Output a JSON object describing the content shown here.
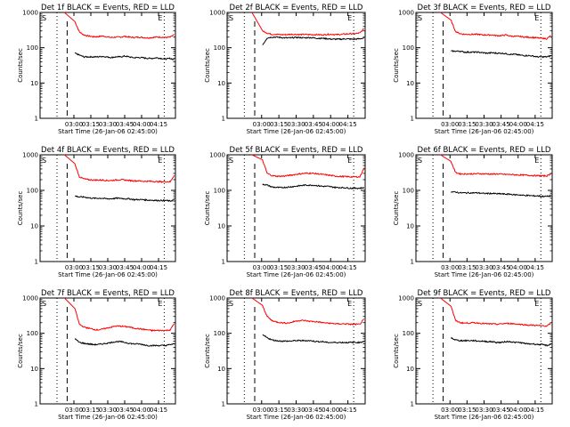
{
  "chart_data": [
    {
      "type": "line",
      "title": "Det 1f BLACK = Events, RED = LLD",
      "xlabel": "Start Time (26-Jan-06 02:45:00)",
      "ylabel": "Counts/sec",
      "yscale": "log",
      "ylim": [
        1,
        1000
      ],
      "x_ticks": [
        "03:00",
        "03:15",
        "03:30",
        "03:45",
        "04:00",
        "04:15"
      ],
      "y_ticks": [
        "1",
        "10",
        "100",
        "1000"
      ],
      "markers": [
        "S",
        "E"
      ],
      "shape": "a",
      "series": [
        {
          "color": "#ff0000",
          "values": [
            null,
            null,
            550,
            280,
            230,
            215,
            205,
            205,
            215,
            205,
            195,
            200,
            200,
            210,
            200,
            195,
            200,
            195,
            190,
            195,
            200,
            200,
            195,
            200,
            240
          ]
        },
        {
          "color": "#000000",
          "values": [
            null,
            null,
            70,
            62,
            55,
            55,
            55,
            55,
            57,
            55,
            53,
            55,
            55,
            58,
            55,
            52,
            53,
            52,
            50,
            50,
            52,
            50,
            48,
            50,
            45
          ]
        }
      ]
    },
    {
      "type": "line",
      "title": "Det 2f BLACK = Events, RED = LLD",
      "xlabel": "Start Time (26-Jan-06 02:45:00)",
      "ylabel": "Counts/sec",
      "yscale": "log",
      "ylim": [
        1,
        1000
      ],
      "x_ticks": [
        "03:00",
        "03:15",
        "03:30",
        "03:45",
        "04:00",
        "04:15"
      ],
      "y_ticks": [
        "1",
        "10",
        "100",
        "1000"
      ],
      "markers": [
        "S",
        "E"
      ],
      "shape": "b",
      "series": [
        {
          "color": "#ff0000",
          "values": [
            null,
            null,
            300,
            260,
            240,
            240,
            235,
            235,
            240,
            240,
            235,
            240,
            235,
            235,
            235,
            230,
            240,
            240,
            235,
            240,
            245,
            250,
            250,
            260,
            360
          ]
        },
        {
          "color": "#000000",
          "values": [
            null,
            null,
            120,
            190,
            200,
            200,
            195,
            190,
            190,
            195,
            195,
            190,
            195,
            190,
            185,
            185,
            180,
            175,
            175,
            175,
            180,
            175,
            175,
            180,
            190
          ]
        }
      ]
    },
    {
      "type": "line",
      "title": "Det 3f BLACK = Events, RED = LLD",
      "xlabel": "Start Time (26-Jan-06 02:45:00)",
      "ylabel": "Counts/sec",
      "yscale": "log",
      "ylim": [
        1,
        1000
      ],
      "x_ticks": [
        "03:00",
        "03:15",
        "03:30",
        "03:45",
        "04:00",
        "04:15"
      ],
      "y_ticks": [
        "1",
        "10",
        "100",
        "1000"
      ],
      "markers": [
        "S",
        "E"
      ],
      "shape": "a",
      "series": [
        {
          "color": "#ff0000",
          "values": [
            null,
            null,
            600,
            290,
            250,
            240,
            240,
            240,
            240,
            230,
            230,
            230,
            220,
            220,
            230,
            215,
            210,
            210,
            200,
            200,
            195,
            190,
            185,
            180,
            230
          ]
        },
        {
          "color": "#000000",
          "values": [
            null,
            null,
            80,
            80,
            80,
            75,
            75,
            75,
            75,
            72,
            70,
            72,
            70,
            70,
            68,
            65,
            65,
            62,
            60,
            60,
            58,
            55,
            55,
            55,
            60
          ]
        }
      ]
    },
    {
      "type": "line",
      "title": "Det 4f BLACK = Events, RED = LLD",
      "xlabel": "Start Time (26-Jan-06 02:45:00)",
      "ylabel": "Counts/sec",
      "yscale": "log",
      "ylim": [
        1,
        1000
      ],
      "x_ticks": [
        "03:00",
        "03:15",
        "03:30",
        "03:45",
        "04:00",
        "04:15"
      ],
      "y_ticks": [
        "1",
        "10",
        "100",
        "1000"
      ],
      "markers": [
        "S",
        "E"
      ],
      "shape": "a",
      "series": [
        {
          "color": "#ff0000",
          "values": [
            null,
            null,
            550,
            240,
            210,
            200,
            195,
            195,
            195,
            190,
            190,
            195,
            200,
            195,
            190,
            185,
            185,
            180,
            180,
            180,
            175,
            175,
            175,
            175,
            280
          ]
        },
        {
          "color": "#000000",
          "values": [
            null,
            null,
            70,
            65,
            65,
            62,
            60,
            60,
            60,
            58,
            58,
            60,
            60,
            58,
            58,
            55,
            55,
            55,
            53,
            53,
            52,
            52,
            52,
            50,
            55
          ]
        }
      ]
    },
    {
      "type": "line",
      "title": "Det 5f BLACK = Events, RED = LLD",
      "xlabel": "Start Time (26-Jan-06 02:45:00)",
      "ylabel": "Counts/sec",
      "yscale": "log",
      "ylim": [
        1,
        1000
      ],
      "x_ticks": [
        "03:00",
        "03:15",
        "03:30",
        "03:45",
        "04:00",
        "04:15"
      ],
      "y_ticks": [
        "1",
        "10",
        "100",
        "1000"
      ],
      "markers": [
        "S",
        "E"
      ],
      "shape": "a",
      "series": [
        {
          "color": "#ff0000",
          "values": [
            null,
            null,
            700,
            300,
            260,
            250,
            250,
            255,
            265,
            280,
            290,
            300,
            305,
            300,
            290,
            280,
            270,
            260,
            250,
            245,
            245,
            240,
            240,
            240,
            450
          ]
        },
        {
          "color": "#000000",
          "values": [
            null,
            null,
            150,
            140,
            125,
            120,
            120,
            122,
            125,
            130,
            135,
            140,
            140,
            140,
            135,
            130,
            130,
            125,
            120,
            120,
            118,
            115,
            115,
            115,
            120
          ]
        }
      ]
    },
    {
      "type": "line",
      "title": "Det 6f BLACK = Events, RED = LLD",
      "xlabel": "Start Time (26-Jan-06 02:45:00)",
      "ylabel": "Counts/sec",
      "yscale": "log",
      "ylim": [
        1,
        1000
      ],
      "x_ticks": [
        "03:00",
        "03:15",
        "03:30",
        "03:45",
        "04:00",
        "04:15"
      ],
      "y_ticks": [
        "1",
        "10",
        "100",
        "1000"
      ],
      "markers": [
        "S",
        "E"
      ],
      "shape": "a",
      "series": [
        {
          "color": "#ff0000",
          "values": [
            null,
            null,
            650,
            320,
            290,
            290,
            290,
            290,
            295,
            290,
            290,
            285,
            290,
            285,
            280,
            280,
            275,
            270,
            270,
            265,
            260,
            260,
            255,
            255,
            300
          ]
        },
        {
          "color": "#000000",
          "values": [
            null,
            null,
            90,
            90,
            85,
            85,
            85,
            85,
            85,
            82,
            82,
            82,
            80,
            80,
            78,
            78,
            75,
            75,
            72,
            72,
            70,
            70,
            68,
            68,
            70
          ]
        }
      ]
    },
    {
      "type": "line",
      "title": "Det 7f BLACK = Events, RED = LLD",
      "xlabel": "Start Time (26-Jan-06 02:45:00)",
      "ylabel": "Counts/sec",
      "yscale": "log",
      "ylim": [
        1,
        1000
      ],
      "x_ticks": [
        "03:00",
        "03:15",
        "03:30",
        "03:45",
        "04:00",
        "04:15"
      ],
      "y_ticks": [
        "1",
        "10",
        "100",
        "1000"
      ],
      "markers": [
        "S",
        "E"
      ],
      "shape": "a",
      "series": [
        {
          "color": "#ff0000",
          "values": [
            null,
            null,
            500,
            180,
            150,
            140,
            130,
            125,
            130,
            140,
            150,
            160,
            160,
            155,
            150,
            140,
            135,
            130,
            125,
            120,
            120,
            120,
            120,
            125,
            200
          ]
        },
        {
          "color": "#000000",
          "values": [
            null,
            null,
            70,
            55,
            52,
            50,
            48,
            48,
            50,
            52,
            55,
            58,
            58,
            55,
            52,
            50,
            50,
            48,
            45,
            45,
            45,
            45,
            45,
            48,
            50
          ]
        }
      ]
    },
    {
      "type": "line",
      "title": "Det 8f BLACK = Events, RED = LLD",
      "xlabel": "Start Time (26-Jan-06 02:45:00)",
      "ylabel": "Counts/sec",
      "yscale": "log",
      "ylim": [
        1,
        1000
      ],
      "x_ticks": [
        "03:00",
        "03:15",
        "03:30",
        "03:45",
        "04:00",
        "04:15"
      ],
      "y_ticks": [
        "1",
        "10",
        "100",
        "1000"
      ],
      "markers": [
        "S",
        "E"
      ],
      "shape": "a",
      "series": [
        {
          "color": "#ff0000",
          "values": [
            null,
            null,
            600,
            300,
            230,
            210,
            200,
            195,
            200,
            220,
            230,
            230,
            220,
            215,
            210,
            200,
            195,
            190,
            185,
            185,
            185,
            180,
            180,
            180,
            260
          ]
        },
        {
          "color": "#000000",
          "values": [
            null,
            null,
            90,
            75,
            65,
            62,
            60,
            60,
            60,
            62,
            62,
            62,
            62,
            60,
            58,
            58,
            55,
            55,
            55,
            55,
            55,
            55,
            55,
            55,
            60
          ]
        }
      ]
    },
    {
      "type": "line",
      "title": "Det 9f BLACK = Events, RED = LLD",
      "xlabel": "Start Time (26-Jan-06 02:45:00)",
      "ylabel": "Counts/sec",
      "yscale": "log",
      "ylim": [
        1,
        1000
      ],
      "x_ticks": [
        "03:00",
        "03:15",
        "03:30",
        "03:45",
        "04:00",
        "04:15"
      ],
      "y_ticks": [
        "1",
        "10",
        "100",
        "1000"
      ],
      "markers": [
        "S",
        "E"
      ],
      "shape": "a",
      "series": [
        {
          "color": "#ff0000",
          "values": [
            null,
            null,
            600,
            230,
            200,
            195,
            195,
            200,
            195,
            190,
            185,
            185,
            180,
            185,
            190,
            190,
            185,
            180,
            175,
            170,
            170,
            165,
            165,
            160,
            200
          ]
        },
        {
          "color": "#000000",
          "values": [
            null,
            null,
            75,
            65,
            62,
            62,
            62,
            62,
            60,
            60,
            58,
            58,
            55,
            55,
            58,
            58,
            55,
            55,
            52,
            50,
            50,
            48,
            48,
            45,
            50
          ]
        }
      ]
    }
  ]
}
